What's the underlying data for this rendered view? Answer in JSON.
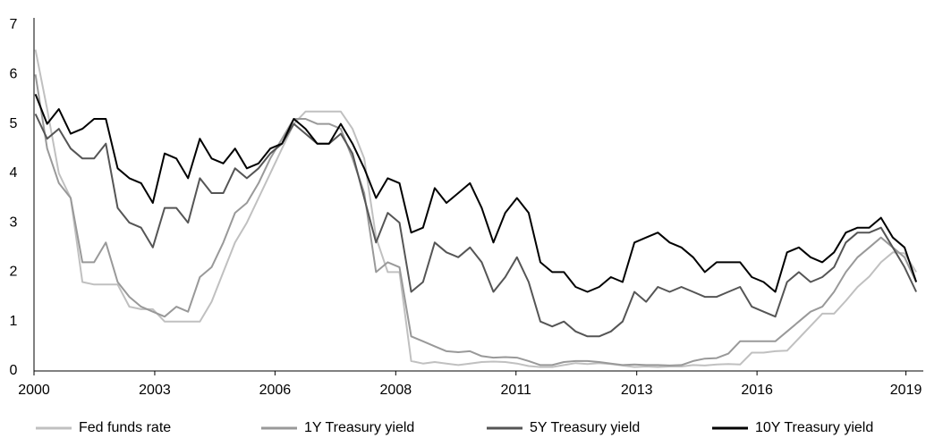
{
  "chart_data": {
    "type": "line",
    "x": [
      2000.9,
      2001.15,
      2001.4,
      2001.65,
      2001.9,
      2002.15,
      2002.4,
      2002.65,
      2002.9,
      2003.15,
      2003.4,
      2003.65,
      2003.9,
      2004.15,
      2004.4,
      2004.65,
      2004.9,
      2005.15,
      2005.4,
      2005.65,
      2005.9,
      2006.15,
      2006.4,
      2006.65,
      2006.9,
      2007.15,
      2007.4,
      2007.65,
      2007.9,
      2008.15,
      2008.4,
      2008.65,
      2008.9,
      2009.15,
      2009.4,
      2009.65,
      2009.9,
      2010.15,
      2010.4,
      2010.65,
      2010.9,
      2011.15,
      2011.4,
      2011.65,
      2011.9,
      2012.15,
      2012.4,
      2012.65,
      2012.9,
      2013.15,
      2013.4,
      2013.65,
      2013.9,
      2014.15,
      2014.4,
      2014.65,
      2014.9,
      2015.15,
      2015.4,
      2015.65,
      2015.9,
      2016.15,
      2016.4,
      2016.65,
      2016.9,
      2017.15,
      2017.4,
      2017.65,
      2017.9,
      2018.15,
      2018.4,
      2018.65,
      2018.9,
      2019.15,
      2019.4,
      2019.65
    ],
    "series": [
      {
        "name": "Fed funds rate",
        "color": "#c0c0c0",
        "values": [
          6.5,
          5.3,
          4.0,
          3.5,
          1.8,
          1.75,
          1.75,
          1.75,
          1.3,
          1.25,
          1.25,
          1.0,
          1.0,
          1.0,
          1.0,
          1.4,
          2.0,
          2.6,
          3.0,
          3.5,
          4.0,
          4.5,
          5.0,
          5.25,
          5.25,
          5.25,
          5.25,
          4.9,
          4.3,
          2.7,
          2.0,
          2.0,
          0.2,
          0.15,
          0.18,
          0.15,
          0.12,
          0.15,
          0.18,
          0.19,
          0.18,
          0.15,
          0.1,
          0.08,
          0.08,
          0.12,
          0.16,
          0.14,
          0.16,
          0.14,
          0.11,
          0.08,
          0.09,
          0.08,
          0.09,
          0.09,
          0.12,
          0.11,
          0.13,
          0.14,
          0.13,
          0.37,
          0.37,
          0.4,
          0.41,
          0.66,
          0.91,
          1.16,
          1.16,
          1.42,
          1.7,
          1.91,
          2.2,
          2.4,
          2.38,
          2.0
        ]
      },
      {
        "name": "1Y Treasury yield",
        "color": "#999999",
        "values": [
          6.0,
          4.5,
          3.8,
          3.5,
          2.2,
          2.2,
          2.6,
          1.8,
          1.5,
          1.3,
          1.2,
          1.1,
          1.3,
          1.2,
          1.9,
          2.1,
          2.6,
          3.2,
          3.4,
          3.8,
          4.3,
          4.7,
          5.1,
          5.1,
          5.0,
          5.0,
          4.9,
          4.3,
          3.6,
          2.0,
          2.2,
          2.1,
          0.7,
          0.6,
          0.5,
          0.4,
          0.38,
          0.4,
          0.3,
          0.27,
          0.28,
          0.27,
          0.2,
          0.12,
          0.12,
          0.18,
          0.2,
          0.2,
          0.18,
          0.15,
          0.12,
          0.13,
          0.12,
          0.12,
          0.11,
          0.12,
          0.2,
          0.25,
          0.26,
          0.35,
          0.6,
          0.6,
          0.6,
          0.6,
          0.8,
          1.0,
          1.2,
          1.3,
          1.6,
          2.0,
          2.3,
          2.5,
          2.7,
          2.5,
          2.3,
          1.8
        ]
      },
      {
        "name": "5Y Treasury yield",
        "color": "#555555",
        "values": [
          5.2,
          4.7,
          4.9,
          4.5,
          4.3,
          4.3,
          4.6,
          3.3,
          3.0,
          2.9,
          2.5,
          3.3,
          3.3,
          3.0,
          3.9,
          3.6,
          3.6,
          4.1,
          3.9,
          4.1,
          4.4,
          4.6,
          5.0,
          4.8,
          4.6,
          4.6,
          4.8,
          4.4,
          3.5,
          2.6,
          3.2,
          3.0,
          1.6,
          1.8,
          2.6,
          2.4,
          2.3,
          2.5,
          2.2,
          1.6,
          1.9,
          2.3,
          1.8,
          1.0,
          0.9,
          1.0,
          0.8,
          0.7,
          0.7,
          0.8,
          1.0,
          1.6,
          1.4,
          1.7,
          1.6,
          1.7,
          1.6,
          1.5,
          1.5,
          1.6,
          1.7,
          1.3,
          1.2,
          1.1,
          1.8,
          2.0,
          1.8,
          1.9,
          2.1,
          2.6,
          2.8,
          2.8,
          2.9,
          2.5,
          2.1,
          1.6
        ]
      },
      {
        "name": "10Y Treasury yield",
        "color": "#000000",
        "values": [
          5.6,
          5.0,
          5.3,
          4.8,
          4.9,
          5.1,
          5.1,
          4.1,
          3.9,
          3.8,
          3.4,
          4.4,
          4.3,
          3.9,
          4.7,
          4.3,
          4.2,
          4.5,
          4.1,
          4.2,
          4.5,
          4.6,
          5.1,
          4.9,
          4.6,
          4.6,
          5.0,
          4.6,
          4.1,
          3.5,
          3.9,
          3.8,
          2.8,
          2.9,
          3.7,
          3.4,
          3.6,
          3.8,
          3.3,
          2.6,
          3.2,
          3.5,
          3.2,
          2.2,
          2.0,
          2.0,
          1.7,
          1.6,
          1.7,
          1.9,
          1.8,
          2.6,
          2.7,
          2.8,
          2.6,
          2.5,
          2.3,
          2.0,
          2.2,
          2.2,
          2.2,
          1.9,
          1.8,
          1.6,
          2.4,
          2.5,
          2.3,
          2.2,
          2.4,
          2.8,
          2.9,
          2.9,
          3.1,
          2.7,
          2.5,
          1.8
        ]
      }
    ],
    "xlim": [
      2000.87,
      2019.8
    ],
    "xticks": [
      {
        "value": 2000.87,
        "label": "2000"
      },
      {
        "value": 2003.44,
        "label": "2003"
      },
      {
        "value": 2006.0,
        "label": "2006"
      },
      {
        "value": 2008.57,
        "label": "2008"
      },
      {
        "value": 2011.13,
        "label": "2011"
      },
      {
        "value": 2013.7,
        "label": "2013"
      },
      {
        "value": 2016.26,
        "label": "2016"
      },
      {
        "value": 2019.43,
        "label": "2019"
      }
    ],
    "ylim": [
      0,
      7
    ],
    "yticks": [
      0,
      1,
      2,
      3,
      4,
      5,
      6,
      7
    ],
    "grid": false,
    "legend": "bottom"
  }
}
